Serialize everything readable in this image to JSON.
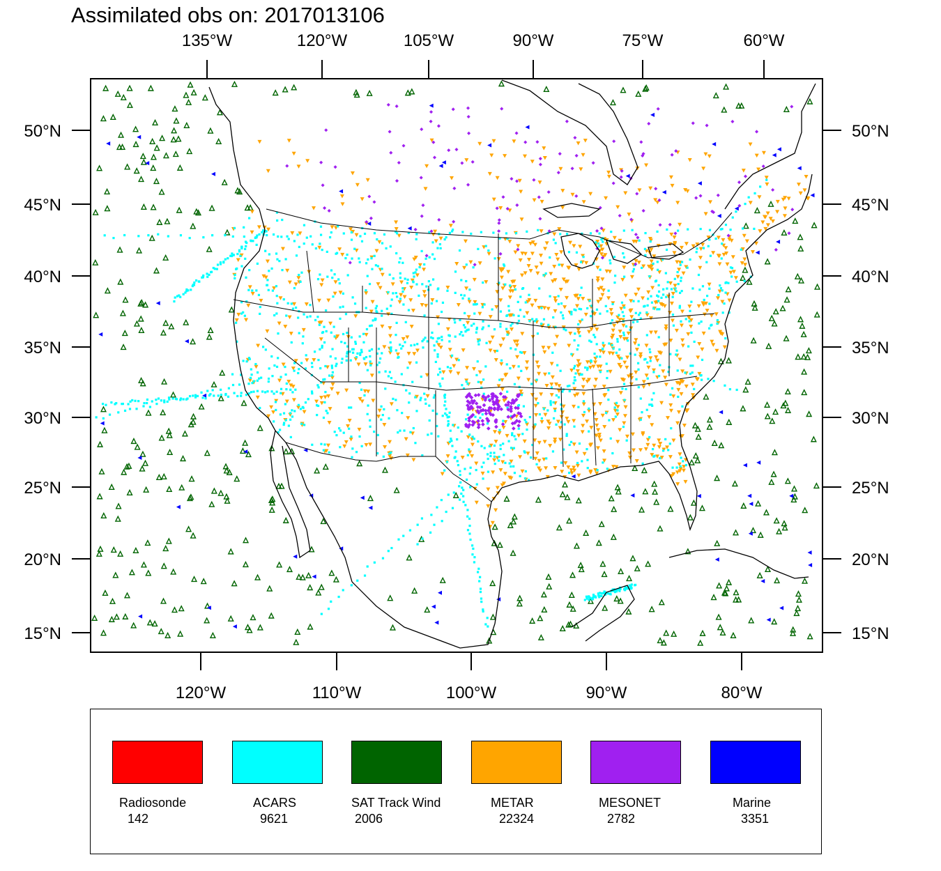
{
  "title": "Assimilated obs on: 2017013106",
  "axes": {
    "top_lon": [
      "135°W",
      "120°W",
      "105°W",
      "90°W",
      "75°W",
      "60°W"
    ],
    "bottom_lon": [
      "120°W",
      "110°W",
      "100°W",
      "90°W",
      "80°W"
    ],
    "left_lat": [
      "50°N",
      "45°N",
      "40°N",
      "35°N",
      "30°N",
      "25°N",
      "20°N",
      "15°N"
    ],
    "right_lat": [
      "50°N",
      "45°N",
      "40°N",
      "35°N",
      "30°N",
      "25°N",
      "20°N",
      "15°N"
    ]
  },
  "legend": [
    {
      "name": "Radiosonde",
      "count": "142",
      "color": "#ff0000"
    },
    {
      "name": "ACARS",
      "count": "9621",
      "color": "#00ffff"
    },
    {
      "name": "SAT Track Wind",
      "count": "2006",
      "color": "#006400"
    },
    {
      "name": "METAR",
      "count": "22324",
      "color": "#ffa500"
    },
    {
      "name": "MESONET",
      "count": "2782",
      "color": "#a020f0"
    },
    {
      "name": "Marine",
      "count": "3351",
      "color": "#0000ff"
    }
  ]
}
